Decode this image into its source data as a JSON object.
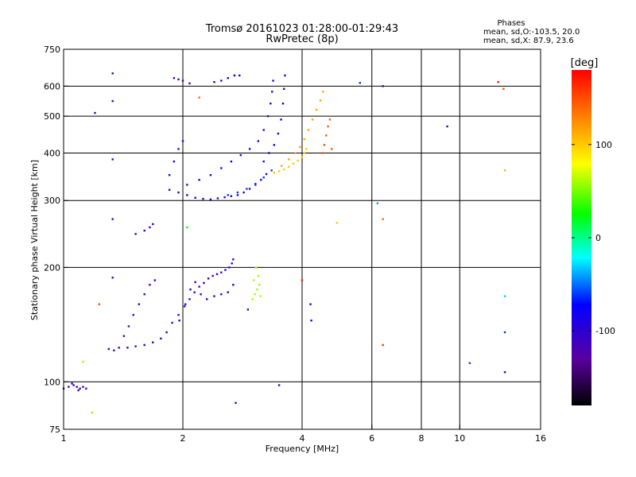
{
  "chart_data": {
    "type": "scatter",
    "title": "Tromsø 20161023 01:28:00-01:29:43",
    "subtitle": "RwPretec (8p)",
    "xlabel": "Frequency [MHz]",
    "ylabel": "Stationary phase Virtual Height [km]",
    "x_scale": "log",
    "y_scale": "log",
    "xlim": [
      1,
      16
    ],
    "ylim": [
      75,
      750
    ],
    "x_ticks": [
      1,
      2,
      4,
      6,
      8,
      10,
      16
    ],
    "x_tick_labels": [
      "1",
      "2",
      "4",
      "6",
      "8",
      "10",
      "16"
    ],
    "y_ticks": [
      75,
      100,
      200,
      300,
      400,
      500,
      600,
      750
    ],
    "y_tick_labels": [
      "75",
      "100",
      "200",
      "300",
      "400",
      "500",
      "600",
      "750"
    ],
    "grid": true,
    "grid_x": [
      2,
      4,
      6,
      8,
      10
    ],
    "grid_y": [
      100,
      200,
      300,
      400,
      500,
      600
    ],
    "stats": {
      "heading": "Phases",
      "line1": "mean, sd,O:-103.5, 20.0",
      "line2": "mean, sd,X:  87.9, 23.6"
    },
    "colorbar": {
      "label": "[deg]",
      "min": -180,
      "max": 180,
      "ticks": [
        100,
        0,
        -100
      ],
      "tick_labels": [
        "100",
        "0",
        "-100"
      ],
      "colors": [
        "#000000",
        "#5a00a0",
        "#0000ff",
        "#00ffff",
        "#00ff00",
        "#ffff00",
        "#ff8000",
        "#ff0000"
      ]
    },
    "traces": [
      {
        "name": "",
        "phase": -110,
        "points": [
          [
            1.0,
            96
          ],
          [
            1.03,
            97
          ],
          [
            1.06,
            98
          ],
          [
            1.08,
            97
          ],
          [
            1.1,
            96
          ],
          [
            1.12,
            97
          ],
          [
            1.14,
            96
          ],
          [
            1.05,
            99
          ],
          [
            1.09,
            95
          ]
        ]
      },
      {
        "name": "",
        "phase": -110,
        "points": [
          [
            1.3,
            122
          ],
          [
            1.34,
            121
          ],
          [
            1.38,
            123
          ],
          [
            1.42,
            132
          ],
          [
            1.46,
            140
          ],
          [
            1.5,
            150
          ],
          [
            1.55,
            160
          ],
          [
            1.6,
            170
          ],
          [
            1.65,
            180
          ],
          [
            1.7,
            185
          ]
        ]
      },
      {
        "name": "",
        "phase": -105,
        "points": [
          [
            1.45,
            123
          ],
          [
            1.52,
            124
          ],
          [
            1.6,
            125
          ],
          [
            1.68,
            127
          ],
          [
            1.76,
            130
          ],
          [
            1.82,
            135
          ],
          [
            1.88,
            143
          ],
          [
            1.95,
            150
          ],
          [
            2.02,
            158
          ],
          [
            2.08,
            165
          ],
          [
            2.14,
            172
          ],
          [
            2.2,
            178
          ],
          [
            2.26,
            182
          ],
          [
            2.32,
            187
          ],
          [
            2.38,
            190
          ],
          [
            2.44,
            192
          ],
          [
            2.5,
            194
          ],
          [
            2.56,
            197
          ],
          [
            2.62,
            200
          ],
          [
            2.66,
            205
          ],
          [
            2.68,
            210
          ]
        ]
      },
      {
        "name": "",
        "phase": -100,
        "points": [
          [
            1.96,
            145
          ],
          [
            2.03,
            160
          ],
          [
            2.09,
            175
          ],
          [
            2.15,
            183
          ],
          [
            2.22,
            170
          ],
          [
            2.3,
            165
          ],
          [
            2.4,
            168
          ],
          [
            2.5,
            170
          ],
          [
            2.6,
            172
          ],
          [
            2.68,
            180
          ]
        ]
      },
      {
        "name": "",
        "phase": 60,
        "points": [
          [
            3.0,
            165
          ],
          [
            3.04,
            170
          ],
          [
            3.08,
            175
          ],
          [
            3.12,
            180
          ],
          [
            3.1,
            190
          ],
          [
            3.06,
            200
          ],
          [
            3.14,
            168
          ],
          [
            3.02,
            185
          ]
        ]
      },
      {
        "name": "",
        "phase": -95,
        "points": [
          [
            1.85,
            320
          ],
          [
            1.95,
            315
          ],
          [
            2.05,
            310
          ],
          [
            2.15,
            305
          ],
          [
            2.25,
            303
          ],
          [
            2.35,
            302
          ],
          [
            2.45,
            304
          ],
          [
            2.55,
            306
          ],
          [
            2.65,
            308
          ],
          [
            2.75,
            310
          ],
          [
            2.85,
            315
          ],
          [
            2.95,
            322
          ],
          [
            3.05,
            330
          ],
          [
            3.15,
            340
          ],
          [
            3.25,
            352
          ]
        ]
      },
      {
        "name": "",
        "phase": -100,
        "points": [
          [
            2.05,
            330
          ],
          [
            2.2,
            340
          ],
          [
            2.35,
            350
          ],
          [
            2.5,
            365
          ],
          [
            2.65,
            380
          ],
          [
            2.8,
            395
          ],
          [
            2.95,
            410
          ],
          [
            3.1,
            430
          ],
          [
            3.2,
            460
          ],
          [
            3.28,
            500
          ],
          [
            3.33,
            540
          ],
          [
            3.36,
            580
          ],
          [
            3.38,
            620
          ]
        ]
      },
      {
        "name": "",
        "phase": -85,
        "points": [
          [
            2.4,
            615
          ],
          [
            2.5,
            620
          ],
          [
            2.6,
            630
          ],
          [
            2.7,
            640
          ],
          [
            2.78,
            640
          ]
        ]
      },
      {
        "name": "",
        "phase": -90,
        "points": [
          [
            3.2,
            380
          ],
          [
            3.3,
            400
          ],
          [
            3.4,
            420
          ],
          [
            3.48,
            450
          ],
          [
            3.54,
            490
          ],
          [
            3.58,
            540
          ],
          [
            3.6,
            590
          ],
          [
            3.62,
            640
          ]
        ]
      },
      {
        "name": "",
        "phase": -60,
        "points": [
          [
            2.6,
            310
          ],
          [
            2.75,
            315
          ],
          [
            2.9,
            322
          ],
          [
            3.05,
            332
          ],
          [
            3.2,
            345
          ],
          [
            3.35,
            360
          ]
        ]
      },
      {
        "name": "",
        "phase": 100,
        "points": [
          [
            3.4,
            355
          ],
          [
            3.5,
            358
          ],
          [
            3.6,
            362
          ],
          [
            3.7,
            368
          ],
          [
            3.8,
            375
          ],
          [
            3.9,
            382
          ],
          [
            4.0,
            390
          ],
          [
            4.05,
            400
          ],
          [
            4.1,
            410
          ]
        ]
      },
      {
        "name": "",
        "phase": 115,
        "points": [
          [
            3.55,
            370
          ],
          [
            3.7,
            385
          ],
          [
            3.85,
            400
          ],
          [
            3.95,
            415
          ],
          [
            4.05,
            435
          ],
          [
            4.15,
            460
          ],
          [
            4.25,
            490
          ],
          [
            4.35,
            520
          ],
          [
            4.45,
            550
          ],
          [
            4.52,
            580
          ]
        ]
      },
      {
        "name": "",
        "phase": 145,
        "points": [
          [
            4.5,
            400
          ],
          [
            4.55,
            420
          ],
          [
            4.6,
            445
          ],
          [
            4.65,
            470
          ],
          [
            4.7,
            490
          ],
          [
            4.75,
            410
          ]
        ]
      },
      {
        "name": "",
        "phase": -110,
        "points": [
          [
            1.85,
            350
          ],
          [
            1.9,
            380
          ],
          [
            1.95,
            410
          ],
          [
            2.0,
            430
          ]
        ]
      },
      {
        "name": "",
        "phase": -110,
        "points": [
          [
            1.9,
            630
          ],
          [
            1.95,
            625
          ],
          [
            2.0,
            620
          ],
          [
            2.08,
            610
          ]
        ]
      },
      {
        "name": "",
        "phase": -110,
        "points": [
          [
            1.6,
            250
          ],
          [
            1.65,
            255
          ],
          [
            1.68,
            260
          ]
        ]
      }
    ],
    "scattered": [
      {
        "x": 1.33,
        "y": 648,
        "phase": -110
      },
      {
        "x": 1.33,
        "y": 548,
        "phase": -110
      },
      {
        "x": 1.33,
        "y": 385,
        "phase": -110
      },
      {
        "x": 1.33,
        "y": 268,
        "phase": -110
      },
      {
        "x": 1.33,
        "y": 188,
        "phase": -110
      },
      {
        "x": 1.2,
        "y": 510,
        "phase": -110
      },
      {
        "x": 1.52,
        "y": 245,
        "phase": -110
      },
      {
        "x": 1.23,
        "y": 160,
        "phase": 150
      },
      {
        "x": 1.12,
        "y": 113,
        "phase": 60
      },
      {
        "x": 1.18,
        "y": 83,
        "phase": 60
      },
      {
        "x": 2.05,
        "y": 255,
        "phase": 20
      },
      {
        "x": 2.2,
        "y": 560,
        "phase": 140
      },
      {
        "x": 2.72,
        "y": 88,
        "phase": -110
      },
      {
        "x": 2.92,
        "y": 155,
        "phase": -110
      },
      {
        "x": 3.5,
        "y": 98,
        "phase": -110
      },
      {
        "x": 4.0,
        "y": 185,
        "phase": 170
      },
      {
        "x": 4.2,
        "y": 160,
        "phase": -90
      },
      {
        "x": 4.22,
        "y": 145,
        "phase": -90
      },
      {
        "x": 4.9,
        "y": 262,
        "phase": 100
      },
      {
        "x": 5.6,
        "y": 612,
        "phase": -60
      },
      {
        "x": 6.2,
        "y": 295,
        "phase": -40
      },
      {
        "x": 6.4,
        "y": 268,
        "phase": 140
      },
      {
        "x": 6.4,
        "y": 125,
        "phase": 160
      },
      {
        "x": 6.4,
        "y": 600,
        "phase": -100
      },
      {
        "x": 9.3,
        "y": 470,
        "phase": -110
      },
      {
        "x": 10.6,
        "y": 112,
        "phase": -60
      },
      {
        "x": 12.5,
        "y": 615,
        "phase": 170
      },
      {
        "x": 12.9,
        "y": 590,
        "phase": 150
      },
      {
        "x": 13.0,
        "y": 360,
        "phase": 110
      },
      {
        "x": 13.0,
        "y": 168,
        "phase": -30
      },
      {
        "x": 13.0,
        "y": 135,
        "phase": -60
      },
      {
        "x": 13.0,
        "y": 106,
        "phase": -100
      }
    ]
  }
}
